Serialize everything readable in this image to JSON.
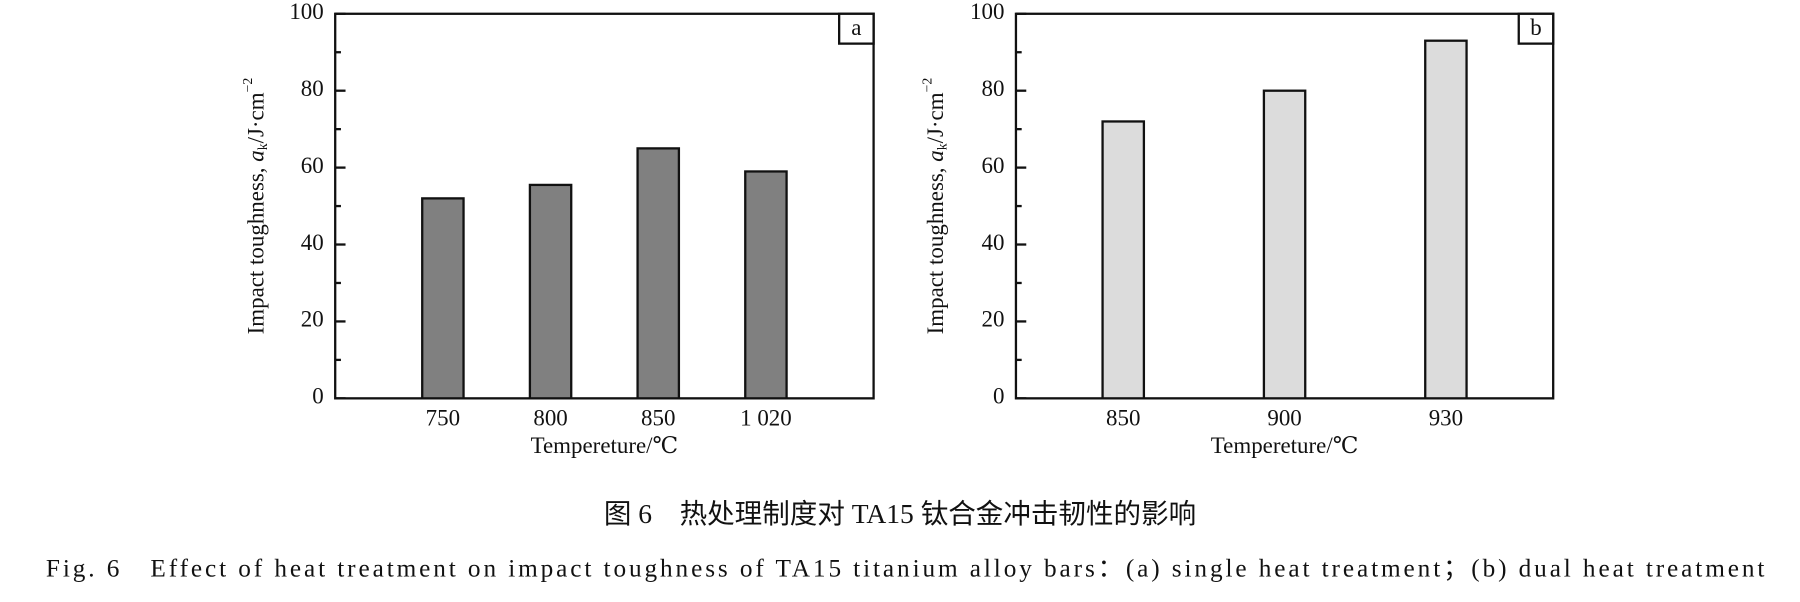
{
  "chart_data": [
    {
      "type": "bar",
      "panel_label": "a",
      "y_label": {
        "text": "Impact toughness, ",
        "symbol": "a",
        "subscript": "k",
        "unit": "/J·cm",
        "superscript": "−2"
      },
      "x_label": "Tempereture/℃",
      "categories": [
        "750",
        "800",
        "850",
        "1 020"
      ],
      "values": [
        52,
        55.5,
        65,
        59
      ],
      "color": "#808080",
      "ylim": [
        0,
        100
      ],
      "yticks": [
        0,
        20,
        40,
        60,
        80,
        100
      ]
    },
    {
      "type": "bar",
      "panel_label": "b",
      "y_label": {
        "text": "Impact toughness, ",
        "symbol": "a",
        "subscript": "k",
        "unit": "/J·cm",
        "superscript": "−2"
      },
      "x_label": "Tempereture/℃",
      "categories": [
        "850",
        "900",
        "930"
      ],
      "values": [
        72,
        80,
        93
      ],
      "color": "#dcdcdc",
      "ylim": [
        0,
        100
      ],
      "yticks": [
        0,
        20,
        40,
        60,
        80,
        100
      ]
    }
  ],
  "caption": {
    "zh": "图 6　热处理制度对 TA15 钛合金冲击韧性的影响",
    "en": "Fig. 6　Effect of heat treatment on impact toughness of TA15 titanium alloy bars：(a) single heat treatment；(b) dual heat treatment"
  }
}
